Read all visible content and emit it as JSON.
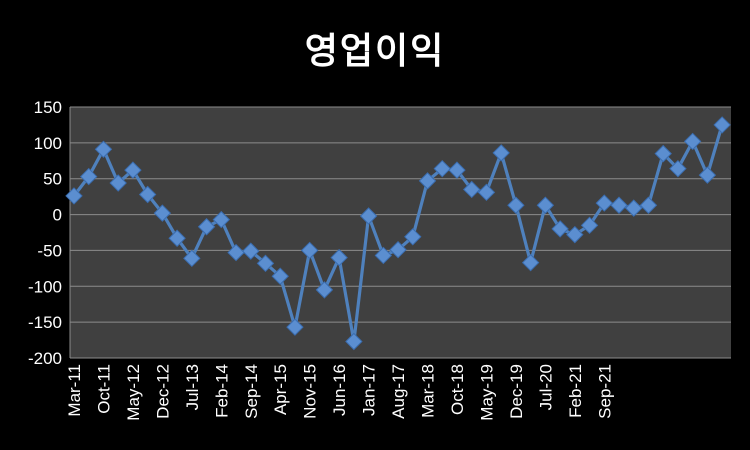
{
  "chart_data": {
    "type": "line",
    "title": "영업이익",
    "xlabel": "",
    "ylabel": "",
    "ylim": [
      -200,
      150
    ],
    "yticks": [
      150,
      100,
      50,
      0,
      -50,
      -100,
      -150,
      -200
    ],
    "ytick_labels": [
      "150",
      "100",
      "50",
      "0",
      "-50",
      "-100",
      "-150",
      "-200"
    ],
    "xtick_labels": [
      "Mar-11",
      "Oct-11",
      "May-12",
      "Dec-12",
      "Jul-13",
      "Feb-14",
      "Sep-14",
      "Apr-15",
      "Nov-15",
      "Jun-16",
      "Jan-17",
      "Aug-17",
      "Mar-18",
      "Oct-18",
      "May-19",
      "Dec-19",
      "Jul-20",
      "Feb-21",
      "Sep-21"
    ],
    "xtick_every": 2,
    "grid": true,
    "legend": "none",
    "background": "#404040",
    "series": [
      {
        "color": "#4F81BD",
        "marker": "diamond",
        "values": [
          26,
          53,
          91,
          44,
          62,
          28,
          2,
          -33,
          -61,
          -17,
          -7,
          -53,
          -51,
          -68,
          -86,
          -157,
          -50,
          -105,
          -60,
          -177,
          -2,
          -57,
          -49,
          -31,
          47,
          64,
          62,
          35,
          31,
          86,
          13,
          -67,
          13,
          -20,
          -28,
          -15,
          16,
          13,
          9,
          13,
          85,
          64,
          102,
          55,
          125
        ]
      }
    ]
  },
  "colors": {
    "page_background": "#000000",
    "plot_background": "#404040",
    "gridline": "#8c8c8c",
    "text": "#ffffff",
    "line": "#4F81BD"
  }
}
